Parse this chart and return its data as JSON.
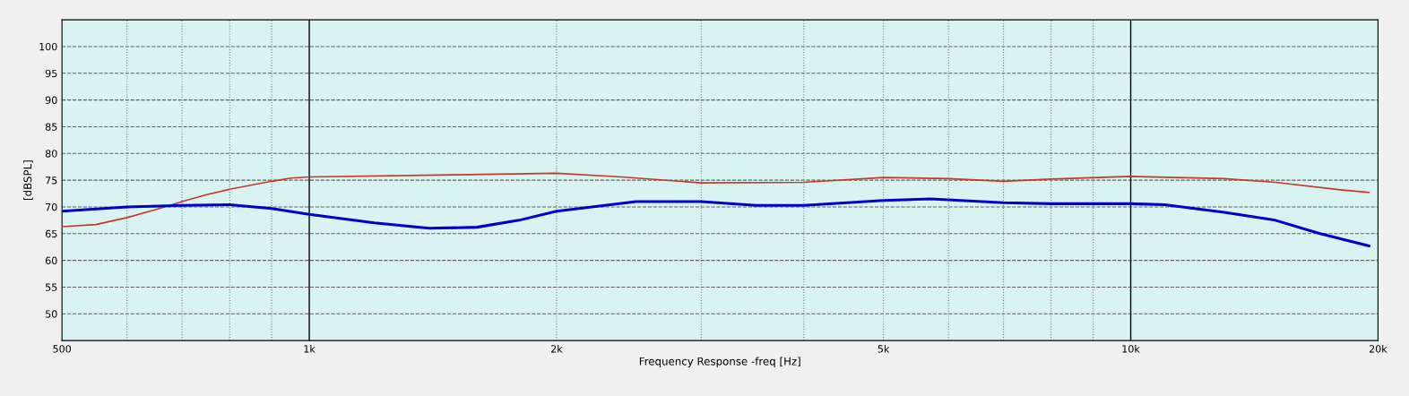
{
  "chart_data": {
    "type": "line",
    "xlabel": "Frequency Response -freq [Hz]",
    "ylabel": "[dBSPL]",
    "log": "x",
    "xlim": [
      500,
      20000
    ],
    "ylim": [
      45,
      105
    ],
    "xticks": [
      {
        "value": 500,
        "label": "500"
      },
      {
        "value": 600,
        "label": null
      },
      {
        "value": 700,
        "label": null
      },
      {
        "value": 800,
        "label": null
      },
      {
        "value": 900,
        "label": null
      },
      {
        "value": 1000,
        "label": "1k"
      },
      {
        "value": 2000,
        "label": "2k"
      },
      {
        "value": 3000,
        "label": null
      },
      {
        "value": 4000,
        "label": null
      },
      {
        "value": 5000,
        "label": "5k"
      },
      {
        "value": 6000,
        "label": null
      },
      {
        "value": 7000,
        "label": null
      },
      {
        "value": 8000,
        "label": null
      },
      {
        "value": 9000,
        "label": null
      },
      {
        "value": 10000,
        "label": "10k"
      },
      {
        "value": 20000,
        "label": "20k"
      }
    ],
    "yticks": [
      50,
      55,
      60,
      65,
      70,
      75,
      80,
      85,
      90,
      95,
      100
    ],
    "grid": true,
    "line_style": "solid",
    "marker": "none",
    "series": [
      {
        "color": "#c0392b",
        "x": [
          500,
          550,
          600,
          650,
          700,
          750,
          800,
          900,
          950,
          1000,
          1500,
          2000,
          2400,
          3000,
          4000,
          5000,
          6000,
          7000,
          8000,
          10000,
          13000,
          15000,
          18000,
          19500
        ],
        "values": [
          66.3,
          66.7,
          68,
          69.5,
          71,
          72.3,
          73.3,
          74.8,
          75.4,
          75.6,
          76,
          76.3,
          75.6,
          74.5,
          74.6,
          75.5,
          75.3,
          74.8,
          75.2,
          75.7,
          75.3,
          74.6,
          73.2,
          72.7
        ]
      },
      {
        "color": "#0000cc",
        "x": [
          500,
          600,
          700,
          800,
          900,
          1000,
          1200,
          1400,
          1600,
          1800,
          2000,
          2500,
          3000,
          3500,
          4000,
          5000,
          5700,
          7000,
          8000,
          10000,
          11000,
          13000,
          15000,
          17000,
          19500
        ],
        "values": [
          69.2,
          70,
          70.3,
          70.4,
          69.7,
          68.6,
          67,
          66,
          66.2,
          67.5,
          69.2,
          71,
          71,
          70.3,
          70.3,
          71.2,
          71.5,
          70.8,
          70.6,
          70.6,
          70.4,
          69,
          67.5,
          65,
          62.7
        ]
      }
    ]
  }
}
